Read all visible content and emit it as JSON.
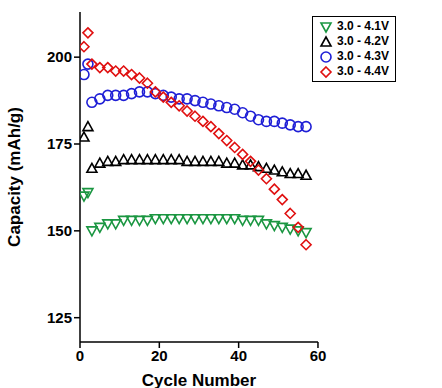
{
  "chart_data": {
    "type": "scatter",
    "x_label": "Cycle Number",
    "y_label": "Capacity (mAh/g)",
    "xlim": [
      0,
      60
    ],
    "xticks": [
      0,
      20,
      40,
      60
    ],
    "ylim": [
      118,
      213
    ],
    "yticks": [
      125,
      150,
      175,
      200
    ],
    "legend": "upper right",
    "grid": false,
    "x": [
      1,
      2,
      3,
      5,
      7,
      9,
      11,
      13,
      15,
      17,
      19,
      21,
      23,
      25,
      27,
      29,
      31,
      33,
      35,
      37,
      39,
      41,
      43,
      45,
      47,
      49,
      51,
      53,
      55,
      57
    ],
    "series": [
      {
        "name": "3.0 - 4.1V",
        "color": "#1a9641",
        "marker": "triangle-down",
        "values": [
          160,
          161,
          150,
          151,
          152,
          152,
          153,
          153,
          153,
          153,
          153.5,
          153.5,
          153.5,
          153.5,
          153.5,
          153.5,
          153.5,
          153.5,
          153.5,
          153.5,
          153.5,
          153,
          153,
          153,
          152,
          151.5,
          151,
          150.5,
          150,
          149.5
        ]
      },
      {
        "name": "3.0 - 4.2V",
        "color": "#000000",
        "marker": "triangle",
        "values": [
          177,
          180,
          168,
          169.5,
          170,
          170,
          170.5,
          170.5,
          170.5,
          170.5,
          170.5,
          170.5,
          170.5,
          170.5,
          170,
          170,
          170,
          170,
          170,
          169.5,
          169.5,
          169,
          169,
          168.5,
          168,
          167.5,
          167,
          166.5,
          166.5,
          166
        ]
      },
      {
        "name": "3.0 - 4.3V",
        "color": "#1f1fd6",
        "marker": "circle",
        "values": [
          195,
          198,
          187,
          188,
          189,
          189,
          189,
          189.5,
          190,
          190,
          189.5,
          189,
          188.5,
          188,
          188,
          187.5,
          187,
          186.5,
          186,
          185.5,
          185,
          184,
          183,
          182,
          181.5,
          181.5,
          181,
          180.5,
          180,
          180
        ]
      },
      {
        "name": "3.0 - 4.4V",
        "color": "#e01010",
        "marker": "diamond",
        "values": [
          203,
          207,
          198,
          197,
          197,
          196,
          196,
          195,
          194,
          192.5,
          190,
          188.5,
          187,
          186,
          184.5,
          183,
          181.5,
          180,
          178,
          176,
          174,
          172,
          170,
          167.5,
          165,
          162,
          159,
          155,
          151,
          146
        ]
      }
    ]
  }
}
